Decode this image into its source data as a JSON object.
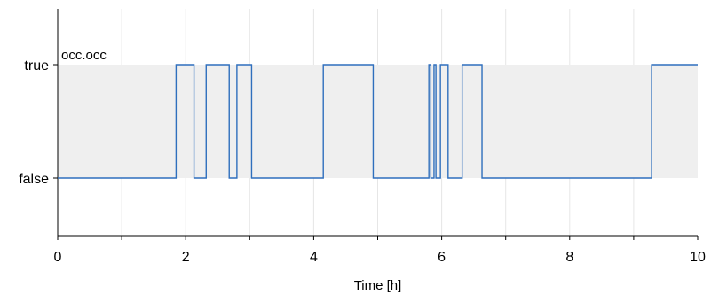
{
  "chart_data": {
    "type": "line",
    "step": true,
    "title": "",
    "xlabel": "Time [h]",
    "ylabel": "",
    "xlim": [
      0,
      10
    ],
    "x_ticks": [
      0,
      2,
      4,
      6,
      8,
      10
    ],
    "x_tick_labels": [
      "0",
      "2",
      "4",
      "6",
      "8",
      "10"
    ],
    "y_categories": [
      "false",
      "true"
    ],
    "grid": true,
    "legend": "none",
    "colors": {
      "line": "#2f6fbd",
      "band": "#efefef",
      "grid": "#e6e6e6",
      "axis": "#000000"
    },
    "series": [
      {
        "name": "occ.occ",
        "points": [
          [
            0,
            0
          ],
          [
            1.85,
            1
          ],
          [
            2.13,
            0
          ],
          [
            2.32,
            1
          ],
          [
            2.68,
            0
          ],
          [
            2.8,
            1
          ],
          [
            3.03,
            0
          ],
          [
            4.15,
            1
          ],
          [
            4.93,
            0
          ],
          [
            5.8,
            1
          ],
          [
            5.83,
            0
          ],
          [
            5.88,
            1
          ],
          [
            5.91,
            0
          ],
          [
            5.98,
            1
          ],
          [
            6.1,
            0
          ],
          [
            6.32,
            1
          ],
          [
            6.63,
            0
          ],
          [
            9.28,
            1
          ],
          [
            10,
            1
          ]
        ]
      }
    ]
  }
}
